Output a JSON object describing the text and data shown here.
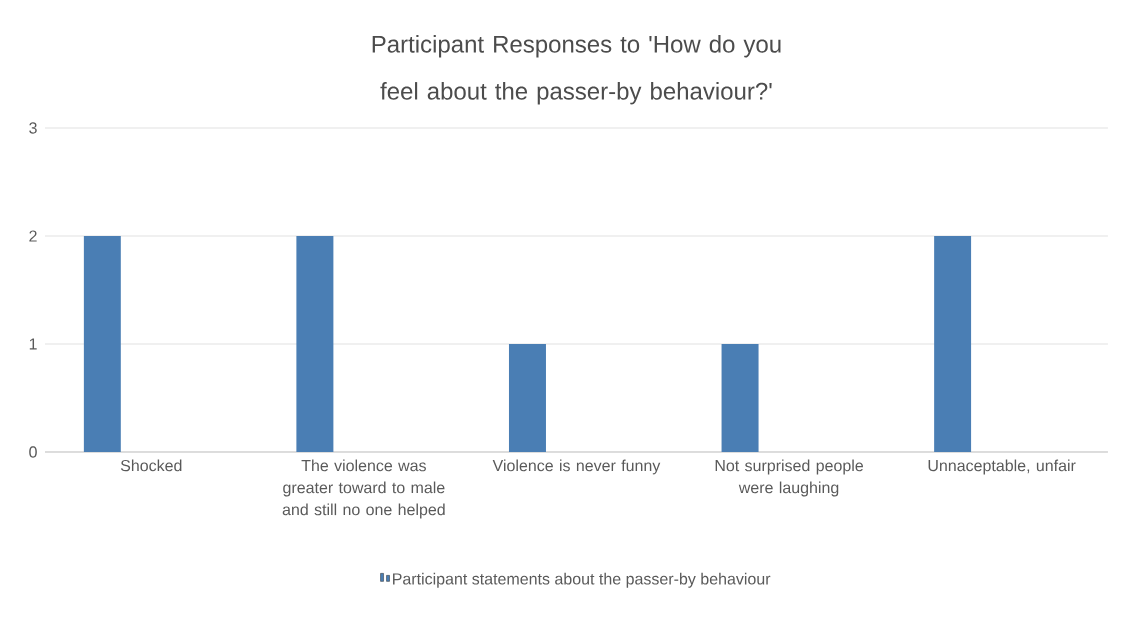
{
  "chart_data": {
    "type": "bar",
    "title": "Participant Responses to 'How do you feel about the passer-by behaviour?'",
    "categories": [
      "Shocked",
      "The violence was greater toward to male and still no one helped",
      "Violence is never funny",
      "Not surprised people were laughing",
      "Unnaceptable, unfair"
    ],
    "series": [
      {
        "name": "Participant statements about the passer-by behaviour",
        "color": "#4a7eb4",
        "values": [
          2,
          2,
          1,
          1,
          2
        ]
      }
    ],
    "ylim": [
      0,
      3
    ],
    "yticks": [
      0,
      1,
      2,
      3
    ],
    "grid": "y",
    "legend": "bottom"
  }
}
